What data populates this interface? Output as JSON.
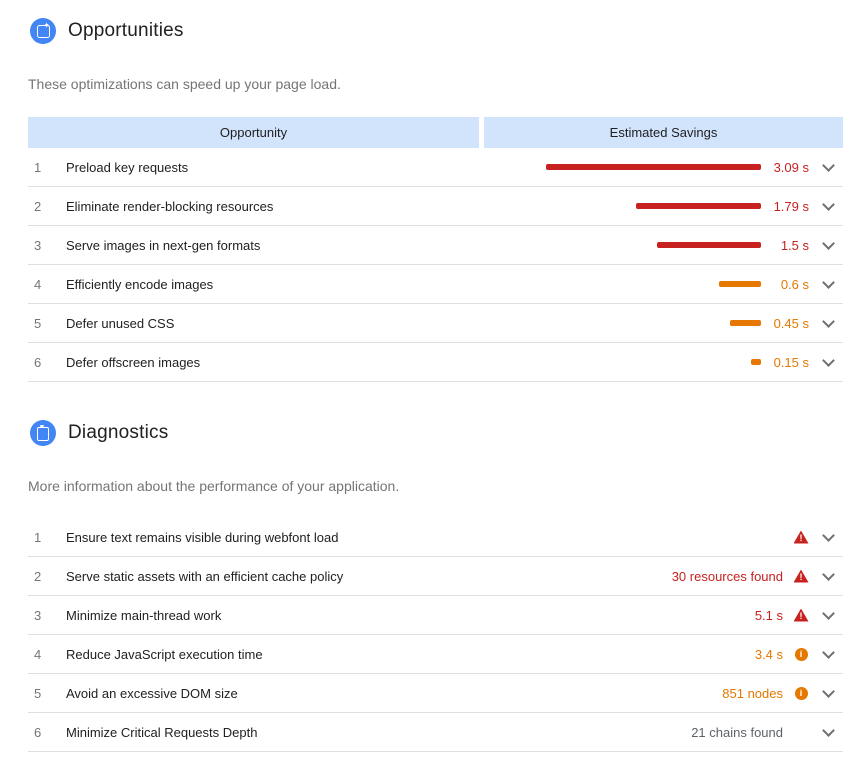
{
  "colors": {
    "red": "#c7221f",
    "orange": "#e67700",
    "gray": "#5f6368",
    "accent_blue": "#4285f4",
    "header_bg": "#d2e3fc",
    "divider": "#e0e0e0"
  },
  "opportunities": {
    "title": "Opportunities",
    "subtitle": "These optimizations can speed up your page load.",
    "table": {
      "headers": [
        "Opportunity",
        "Estimated Savings"
      ],
      "max_seconds": 3.09,
      "rows": [
        {
          "num": "1",
          "label": "Preload key requests",
          "savings": "3.09 s",
          "seconds": 3.09,
          "severity": "red"
        },
        {
          "num": "2",
          "label": "Eliminate render-blocking resources",
          "savings": "1.79 s",
          "seconds": 1.79,
          "severity": "red"
        },
        {
          "num": "3",
          "label": "Serve images in next-gen formats",
          "savings": "1.5 s",
          "seconds": 1.5,
          "severity": "red"
        },
        {
          "num": "4",
          "label": "Efficiently encode images",
          "savings": "0.6 s",
          "seconds": 0.6,
          "severity": "orange"
        },
        {
          "num": "5",
          "label": "Defer unused CSS",
          "savings": "0.45 s",
          "seconds": 0.45,
          "severity": "orange"
        },
        {
          "num": "6",
          "label": "Defer offscreen images",
          "savings": "0.15 s",
          "seconds": 0.15,
          "severity": "orange"
        }
      ]
    }
  },
  "diagnostics": {
    "title": "Diagnostics",
    "subtitle": "More information about the performance of your application.",
    "rows": [
      {
        "num": "1",
        "label": "Ensure text remains visible during webfont load",
        "value": "",
        "value_color": "gray",
        "icon": "warning"
      },
      {
        "num": "2",
        "label": "Serve static assets with an efficient cache policy",
        "value": "30 resources found",
        "value_color": "red",
        "icon": "warning"
      },
      {
        "num": "3",
        "label": "Minimize main-thread work",
        "value": "5.1 s",
        "value_color": "red",
        "icon": "warning"
      },
      {
        "num": "4",
        "label": "Reduce JavaScript execution time",
        "value": "3.4 s",
        "value_color": "orange",
        "icon": "info"
      },
      {
        "num": "5",
        "label": "Avoid an excessive DOM size",
        "value": "851 nodes",
        "value_color": "orange",
        "icon": "info"
      },
      {
        "num": "6",
        "label": "Minimize Critical Requests Depth",
        "value": "21 chains found",
        "value_color": "gray",
        "icon": "none"
      }
    ]
  }
}
